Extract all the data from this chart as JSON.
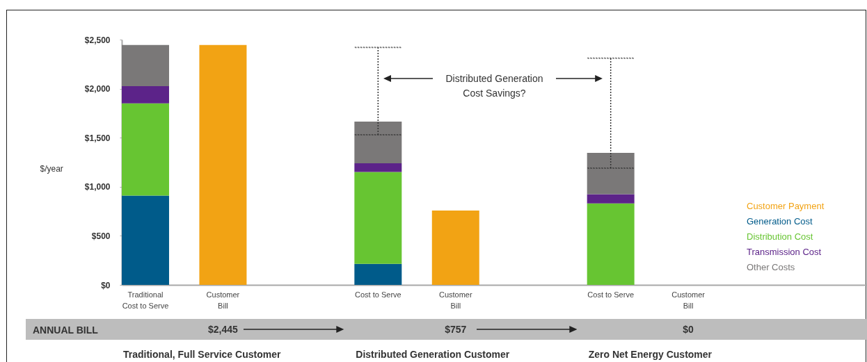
{
  "chart_data": {
    "type": "bar",
    "stacked": true,
    "categories": [
      "Traditional\nCost to Serve",
      "Customer\nBill",
      "Cost to Serve",
      "Customer\nBill",
      "Cost to Serve",
      "Customer\nBill"
    ],
    "ylabel": "$/year",
    "ylim": [
      0,
      2500
    ],
    "yticks": [
      {
        "value": 0,
        "label": "$0"
      },
      {
        "value": 500,
        "label": "$500"
      },
      {
        "value": 1000,
        "label": "$1,000"
      },
      {
        "value": 1500,
        "label": "$1,500"
      },
      {
        "value": 2000,
        "label": "$2,000"
      },
      {
        "value": 2500,
        "label": "$2,500"
      }
    ],
    "series": [
      {
        "name": "Customer Payment",
        "color": "#f2a314",
        "values": [
          null,
          2445,
          null,
          757,
          null,
          0
        ],
        "value_labels": [
          null,
          "$2,445",
          null,
          "$757",
          null,
          "$0"
        ]
      },
      {
        "name": "Generation Cost",
        "color": "#005b8a",
        "values": [
          910,
          null,
          215,
          null,
          null,
          null
        ]
      },
      {
        "name": "Distribution Cost",
        "color": "#67c532",
        "values": [
          940,
          null,
          935,
          null,
          830,
          null
        ]
      },
      {
        "name": "Transmission Cost",
        "color": "#5c2389",
        "values": [
          175,
          null,
          90,
          null,
          95,
          null
        ]
      },
      {
        "name": "Other Costs",
        "color": "#7a7878",
        "values": [
          420,
          null,
          425,
          null,
          420,
          null
        ],
        "errors": [
          null,
          null,
          [
            1530,
            2420
          ],
          null,
          [
            1190,
            2310
          ],
          null
        ]
      }
    ],
    "legend": "right",
    "annotations": [
      "Distributed Generation Cost Savings?",
      "ANNUAL BILL",
      "Traditional, Full Service Customer",
      "Distributed Generation Customer",
      "Zero Net Energy Customer"
    ]
  }
}
